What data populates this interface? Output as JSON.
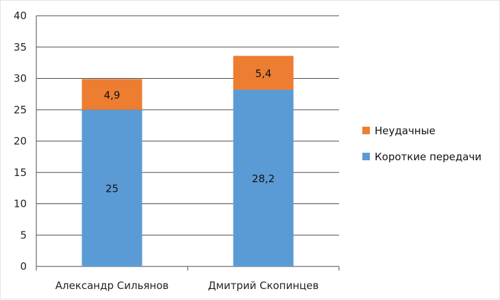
{
  "chart_data": {
    "type": "bar",
    "stacked": true,
    "categories": [
      "Александр Сильянов",
      "Дмитрий Скопинцев"
    ],
    "series": [
      {
        "name": "Короткие передачи",
        "values": [
          25,
          28.2
        ],
        "labels": [
          "25",
          "28,2"
        ],
        "color": "#5b9bd5"
      },
      {
        "name": "Неудачные",
        "values": [
          4.9,
          5.4
        ],
        "labels": [
          "4,9",
          "5,4"
        ],
        "color": "#ed7d31"
      }
    ],
    "ylim": [
      0,
      40
    ],
    "yticks": [
      "0",
      "5",
      "10",
      "15",
      "20",
      "25",
      "30",
      "35",
      "40"
    ],
    "grid": true,
    "legend_position": "right",
    "legend_order": [
      "Неудачные",
      "Короткие передачи"
    ]
  }
}
